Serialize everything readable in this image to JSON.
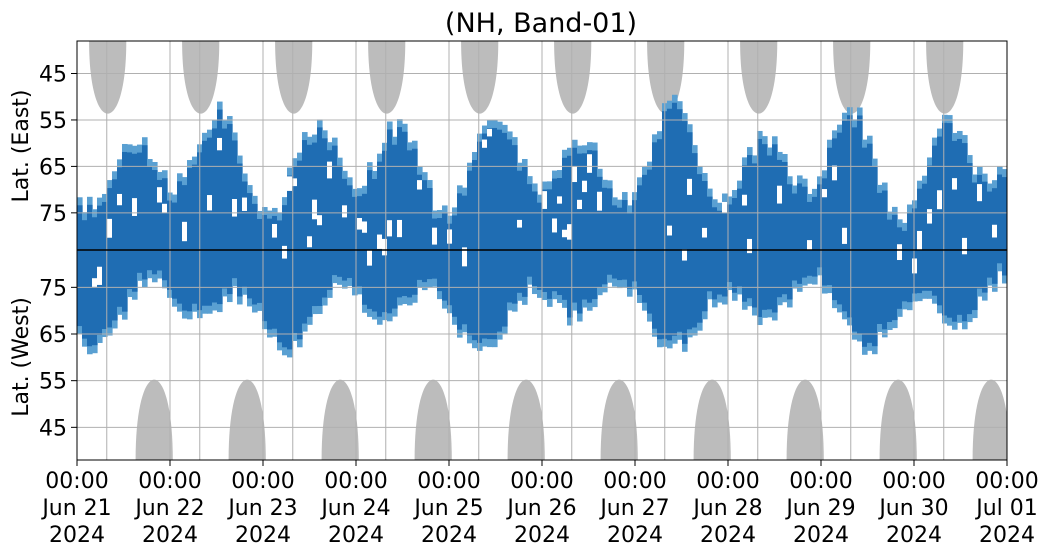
{
  "chart_data": {
    "type": "heatmap",
    "title": "(NH, Band-01)",
    "ylabels": [
      "Lat. (East)",
      "Lat. (West)"
    ],
    "x_ticks": [
      [
        "00:00",
        "Jun 21",
        "2024"
      ],
      [
        "00:00",
        "Jun 22",
        "2024"
      ],
      [
        "00:00",
        "Jun 23",
        "2024"
      ],
      [
        "00:00",
        "Jun 24",
        "2024"
      ],
      [
        "00:00",
        "Jun 25",
        "2024"
      ],
      [
        "00:00",
        "Jun 26",
        "2024"
      ],
      [
        "00:00",
        "Jun 27",
        "2024"
      ],
      [
        "00:00",
        "Jun 28",
        "2024"
      ],
      [
        "00:00",
        "Jun 29",
        "2024"
      ],
      [
        "00:00",
        "Jun 30",
        "2024"
      ],
      [
        "00:00",
        "Jul 01",
        "2024"
      ]
    ],
    "x_range": [
      "2024-06-21 00:00",
      "2024-07-01 00:00"
    ],
    "east_ticks": [
      45,
      55,
      65,
      75
    ],
    "west_ticks": [
      75,
      65,
      55,
      45
    ],
    "east_range": [
      38,
      83
    ],
    "west_range": [
      83,
      38
    ],
    "grid": true,
    "colors": {
      "occurrence": "#1f6db3",
      "occurrence_light": "#5aa0d2",
      "no_data": "#bcbcbc",
      "grid": "#b0b0b0",
      "equator_line": "#000000"
    }
  }
}
